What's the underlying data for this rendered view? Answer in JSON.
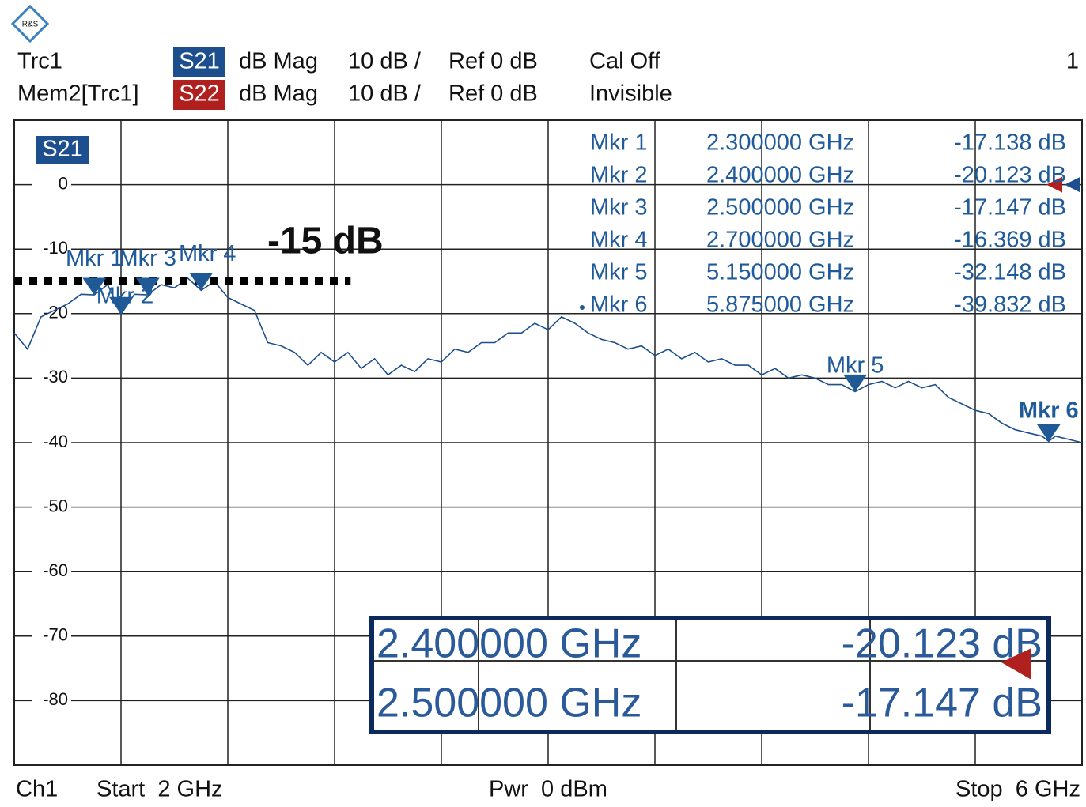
{
  "logo": "R&S",
  "header": {
    "rows": [
      {
        "trace": "Trc1",
        "param": "S21",
        "format": "dB Mag",
        "scale": "10 dB /",
        "ref": "Ref 0 dB",
        "status": "Cal Off"
      },
      {
        "trace": "Mem2[Trc1]",
        "param": "S22",
        "format": "dB Mag",
        "scale": "10 dB /",
        "ref": "Ref 0 dB",
        "status": "Invisible"
      }
    ],
    "channel_number": "1"
  },
  "footer": {
    "channel": "Ch1",
    "start": "Start  2 GHz",
    "power": "Pwr  0 dBm",
    "stop": "Stop  6 GHz"
  },
  "chart_data": {
    "type": "line",
    "trace_label": "S21",
    "xlim": [
      2,
      6
    ],
    "ylim": [
      -90,
      10
    ],
    "yticks": [
      0,
      -10,
      -20,
      -30,
      -40,
      -50,
      -60,
      -70,
      -80
    ],
    "grid": true,
    "x": [
      2.0,
      2.05,
      2.1,
      2.15,
      2.2,
      2.25,
      2.3,
      2.35,
      2.4,
      2.45,
      2.5,
      2.55,
      2.6,
      2.65,
      2.7,
      2.75,
      2.8,
      2.85,
      2.9,
      2.95,
      3.0,
      3.05,
      3.1,
      3.15,
      3.2,
      3.25,
      3.3,
      3.35,
      3.4,
      3.45,
      3.5,
      3.55,
      3.6,
      3.65,
      3.7,
      3.75,
      3.8,
      3.85,
      3.9,
      3.95,
      4.0,
      4.05,
      4.1,
      4.15,
      4.2,
      4.25,
      4.3,
      4.35,
      4.4,
      4.45,
      4.5,
      4.55,
      4.6,
      4.65,
      4.7,
      4.75,
      4.8,
      4.85,
      4.9,
      4.95,
      5.0,
      5.05,
      5.1,
      5.15,
      5.2,
      5.25,
      5.3,
      5.35,
      5.4,
      5.45,
      5.5,
      5.55,
      5.6,
      5.65,
      5.7,
      5.75,
      5.8,
      5.85,
      5.875,
      5.9,
      5.95,
      6.0
    ],
    "series": [
      {
        "name": "S21",
        "color": "#1c4f8c",
        "values": [
          -23,
          -25.5,
          -20.5,
          -19.5,
          -18.5,
          -17,
          -17.1,
          -15.5,
          -20.1,
          -17,
          -17.1,
          -15.5,
          -16,
          -14.5,
          -16.4,
          -15,
          -17.5,
          -18.5,
          -19.5,
          -24.5,
          -25,
          -26,
          -28,
          -26,
          -27.5,
          -26,
          -28.5,
          -27,
          -29.5,
          -28,
          -29,
          -27,
          -27.5,
          -25.5,
          -26,
          -24.5,
          -24.5,
          -23,
          -23,
          -21.5,
          -22.5,
          -20.5,
          -21.5,
          -23,
          -24,
          -24.5,
          -25.5,
          -25,
          -26.5,
          -25.5,
          -27,
          -26,
          -27.5,
          -27,
          -28,
          -28,
          -29.5,
          -28.5,
          -30,
          -29.5,
          -30,
          -31,
          -31,
          -32.1,
          -31,
          -30.5,
          -31.5,
          -30.5,
          -31.5,
          -31,
          -33,
          -34,
          -35,
          -35.5,
          -37,
          -38,
          -38.5,
          -39,
          -39.8,
          -39,
          -39.5,
          -40
        ]
      }
    ],
    "markers": {
      "names": [
        "Mkr 1",
        "Mkr 2",
        "Mkr 3",
        "Mkr 4",
        "Mkr 5",
        "Mkr 6"
      ],
      "x": [
        2.3,
        2.4,
        2.5,
        2.7,
        5.15,
        5.875
      ],
      "x_labels": [
        "2.300000 GHz",
        "2.400000 GHz",
        "2.500000 GHz",
        "2.700000 GHz",
        "5.150000 GHz",
        "5.875000 GHz"
      ],
      "values": [
        -17.138,
        -20.123,
        -17.147,
        -16.369,
        -32.148,
        -39.832
      ],
      "value_labels": [
        "-17.138 dB",
        "-20.123 dB",
        "-17.147 dB",
        "-16.369 dB",
        "-32.148 dB",
        "-39.832 dB"
      ],
      "color": "#1f5a96"
    },
    "annotation": {
      "text": "-15 dB",
      "y": -15,
      "x": [
        2,
        3.26
      ]
    }
  }
}
